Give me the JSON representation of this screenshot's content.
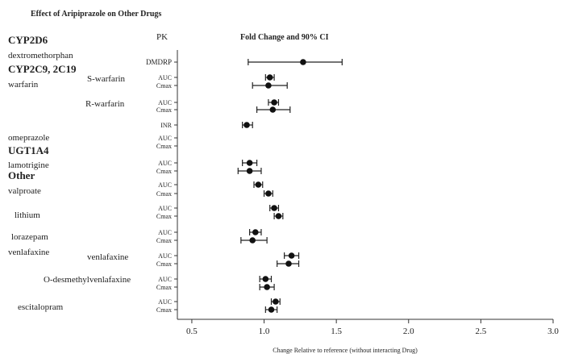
{
  "chart_data": {
    "type": "forest",
    "title": "Effect of Aripiprazole on Other Drugs",
    "pk_header": "PK",
    "ci_header": "Fold Change and 90% CI",
    "xlabel": "Change Relative to reference (without interacting Drug)",
    "xlim": [
      0.4,
      3.0
    ],
    "xticks": [
      0.5,
      1.0,
      1.5,
      2.0,
      2.5,
      3.0
    ],
    "xtick_labels": [
      "0.5",
      "1.0",
      "1.5",
      "2.0",
      "2.5",
      "3.0"
    ],
    "grid": false,
    "left_labels": [
      {
        "text": "CYP2D6",
        "bold": true
      },
      {
        "text": "dextromethorphan",
        "bold": false
      },
      {
        "text": "CYP2C9, 2C19",
        "bold": true
      },
      {
        "text": "warfarin",
        "bold": false
      },
      {
        "text": "omeprazole",
        "bold": false
      },
      {
        "text": "UGT1A4",
        "bold": true
      },
      {
        "text": "lamotrigine",
        "bold": false
      },
      {
        "text": "Other",
        "bold": true
      },
      {
        "text": "valproate",
        "bold": false
      },
      {
        "text": "lithium",
        "bold": false
      },
      {
        "text": "lorazepam",
        "bold": false
      },
      {
        "text": "venlafaxine",
        "bold": false
      },
      {
        "text": "escitalopram",
        "bold": false
      }
    ],
    "sub_labels": [
      {
        "text": "S-warfarin"
      },
      {
        "text": "R-warfarin"
      },
      {
        "text": "venlafaxine"
      },
      {
        "text": "O-desmethylvenlafaxine"
      }
    ],
    "rows": [
      {
        "pk": "DMDRP",
        "estimate": 1.27,
        "lower": 0.89,
        "upper": 1.54
      },
      {
        "pk": "AUC",
        "estimate": 1.04,
        "lower": 1.01,
        "upper": 1.07
      },
      {
        "pk": "Cmax",
        "estimate": 1.03,
        "lower": 0.92,
        "upper": 1.16
      },
      {
        "pk": "AUC",
        "estimate": 1.07,
        "lower": 1.03,
        "upper": 1.1
      },
      {
        "pk": "Cmax",
        "estimate": 1.06,
        "lower": 0.95,
        "upper": 1.18
      },
      {
        "pk": "INR",
        "estimate": 0.88,
        "lower": 0.85,
        "upper": 0.92
      },
      {
        "pk": "AUC",
        "estimate": null,
        "lower": null,
        "upper": null
      },
      {
        "pk": "Cmax",
        "estimate": null,
        "lower": null,
        "upper": null
      },
      {
        "pk": "AUC",
        "estimate": 0.9,
        "lower": 0.85,
        "upper": 0.95
      },
      {
        "pk": "Cmax",
        "estimate": 0.9,
        "lower": 0.82,
        "upper": 0.98
      },
      {
        "pk": "AUC",
        "estimate": 0.96,
        "lower": 0.93,
        "upper": 0.99
      },
      {
        "pk": "Cmax",
        "estimate": 1.03,
        "lower": 1.0,
        "upper": 1.06
      },
      {
        "pk": "AUC",
        "estimate": 1.07,
        "lower": 1.04,
        "upper": 1.1
      },
      {
        "pk": "Cmax",
        "estimate": 1.1,
        "lower": 1.07,
        "upper": 1.13
      },
      {
        "pk": "AUC",
        "estimate": 0.94,
        "lower": 0.9,
        "upper": 0.98
      },
      {
        "pk": "Cmax",
        "estimate": 0.92,
        "lower": 0.84,
        "upper": 1.02
      },
      {
        "pk": "AUC",
        "estimate": 1.19,
        "lower": 1.14,
        "upper": 1.24
      },
      {
        "pk": "Cmax",
        "estimate": 1.17,
        "lower": 1.09,
        "upper": 1.24
      },
      {
        "pk": "AUC",
        "estimate": 1.01,
        "lower": 0.97,
        "upper": 1.05
      },
      {
        "pk": "Cmax",
        "estimate": 1.02,
        "lower": 0.97,
        "upper": 1.07
      },
      {
        "pk": "AUC",
        "estimate": 1.08,
        "lower": 1.05,
        "upper": 1.11
      },
      {
        "pk": "Cmax",
        "estimate": 1.05,
        "lower": 1.01,
        "upper": 1.09
      }
    ]
  }
}
